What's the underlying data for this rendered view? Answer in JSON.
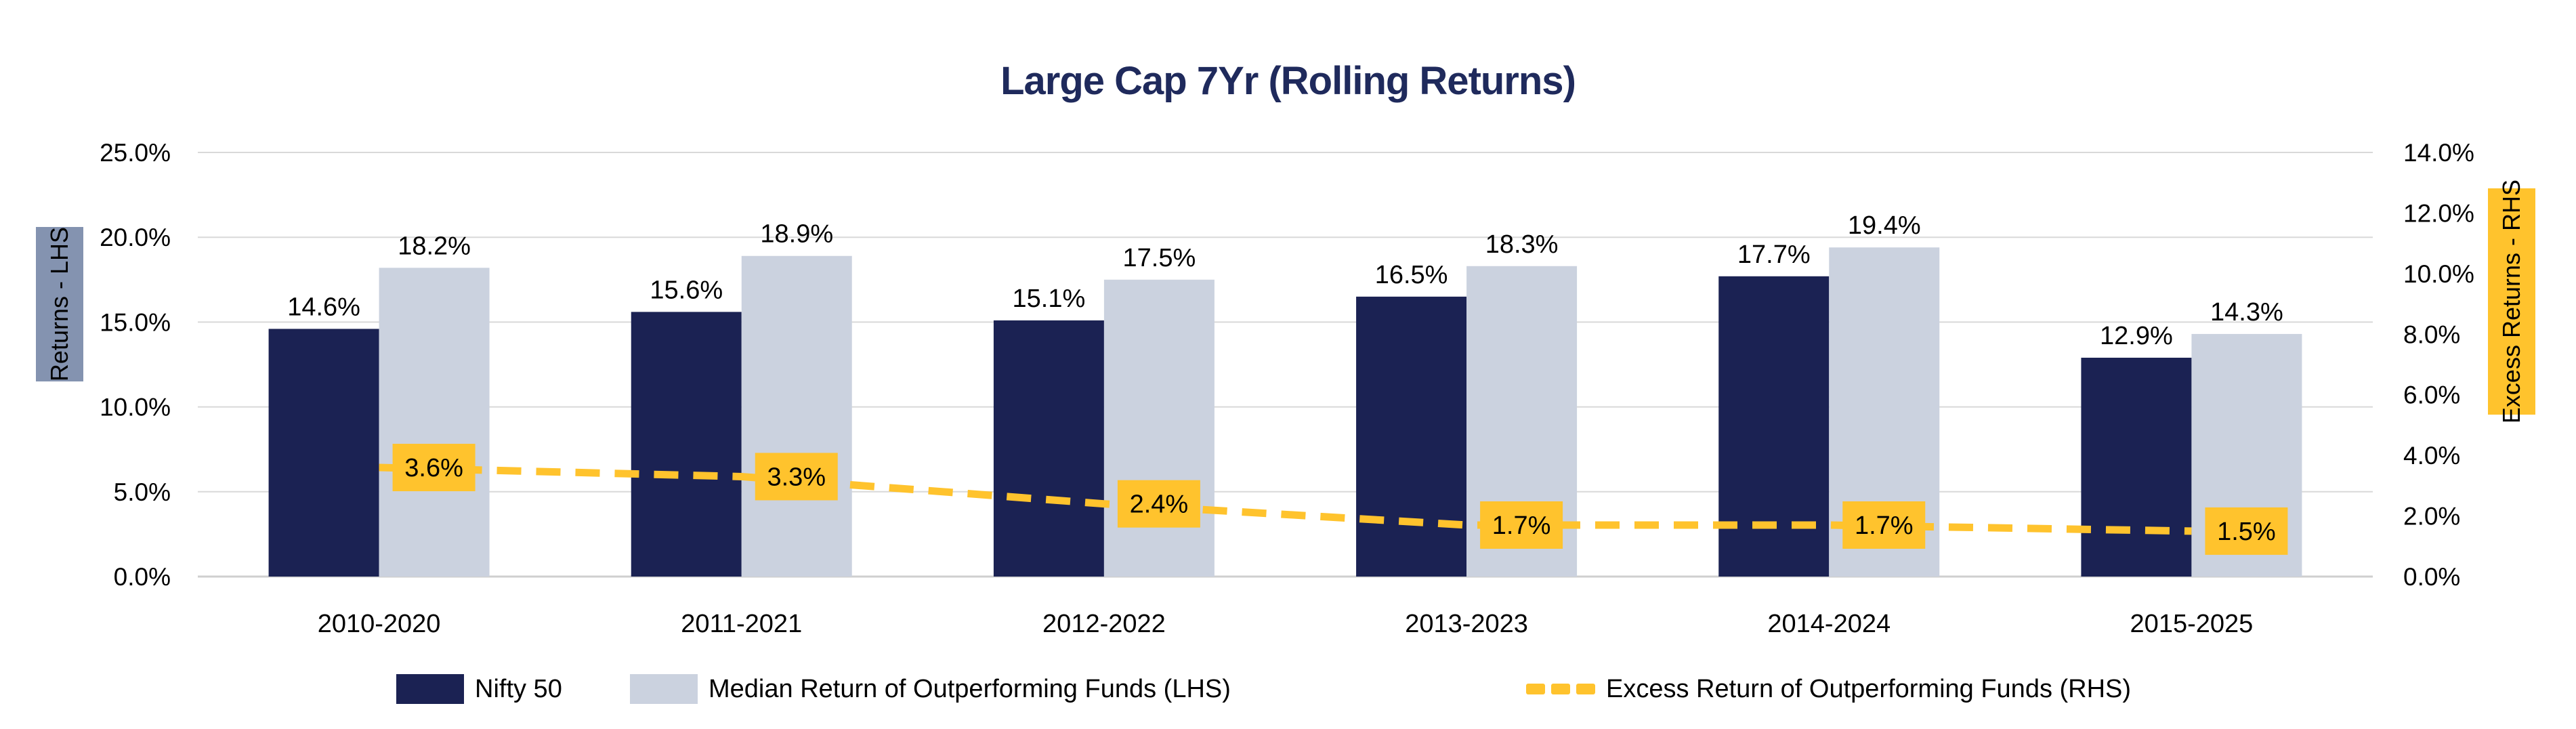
{
  "title": "Large Cap 7Yr (Rolling Returns)",
  "colors": {
    "navy": "#1B2253",
    "light_blue_gray": "#CBD2DF",
    "yellow": "#FFC32D",
    "gridline": "#D9D9D9",
    "baseline": "#CFCFCF",
    "left_axis_label_bg": "#8493B0",
    "title_text": "#1F2A5C",
    "label_text": "#000000"
  },
  "left_axis": {
    "label": "Returns - LHS"
  },
  "right_axis": {
    "label": "Excess Returns - RHS"
  },
  "legend": {
    "items": [
      {
        "label": "Nifty 50",
        "swatch": "navy-rect"
      },
      {
        "label": "Median Return of Outperforming Funds (LHS)",
        "swatch": "light-rect"
      },
      {
        "label": "Excess Return of Outperforming Funds (RHS)",
        "swatch": "yellow-dashes"
      }
    ]
  },
  "chart_data": {
    "type": "bar",
    "subtype": "grouped bars with dashed overlay line (dual axis)",
    "title": "Large Cap 7Yr (Rolling Returns)",
    "categories": [
      "2010-2020",
      "2011-2021",
      "2012-2022",
      "2013-2023",
      "2014-2024",
      "2015-2025"
    ],
    "series": [
      {
        "name": "Nifty 50",
        "type": "bar",
        "axis": "left",
        "color": "#1B2253",
        "values": [
          14.6,
          15.6,
          15.1,
          16.5,
          17.7,
          12.9
        ],
        "labels": [
          "14.6%",
          "15.6%",
          "15.1%",
          "16.5%",
          "17.7%",
          "12.9%"
        ]
      },
      {
        "name": "Median Return of Outperforming Funds (LHS)",
        "type": "bar",
        "axis": "left",
        "color": "#CBD2DF",
        "values": [
          18.2,
          18.9,
          17.5,
          18.3,
          19.4,
          14.3
        ],
        "labels": [
          "18.2%",
          "18.9%",
          "17.5%",
          "18.3%",
          "19.4%",
          "14.3%"
        ]
      },
      {
        "name": "Excess Return of Outperforming Funds (RHS)",
        "type": "line",
        "axis": "right",
        "dashed": true,
        "color": "#FFC32D",
        "values": [
          3.6,
          3.3,
          2.4,
          1.7,
          1.7,
          1.5
        ],
        "labels": [
          "3.6%",
          "3.3%",
          "2.4%",
          "1.7%",
          "1.7%",
          "1.5%"
        ]
      }
    ],
    "left_axis": {
      "min": 0,
      "max": 25,
      "step": 5,
      "tick_labels": [
        "0.0%",
        "5.0%",
        "10.0%",
        "15.0%",
        "20.0%",
        "25.0%"
      ],
      "label": "Returns - LHS"
    },
    "right_axis": {
      "min": 0,
      "max": 14,
      "step": 2,
      "tick_labels": [
        "0.0%",
        "2.0%",
        "4.0%",
        "6.0%",
        "8.0%",
        "10.0%",
        "12.0%",
        "14.0%"
      ],
      "label": "Excess Returns - RHS"
    },
    "grid": true,
    "legend_position": "bottom"
  }
}
